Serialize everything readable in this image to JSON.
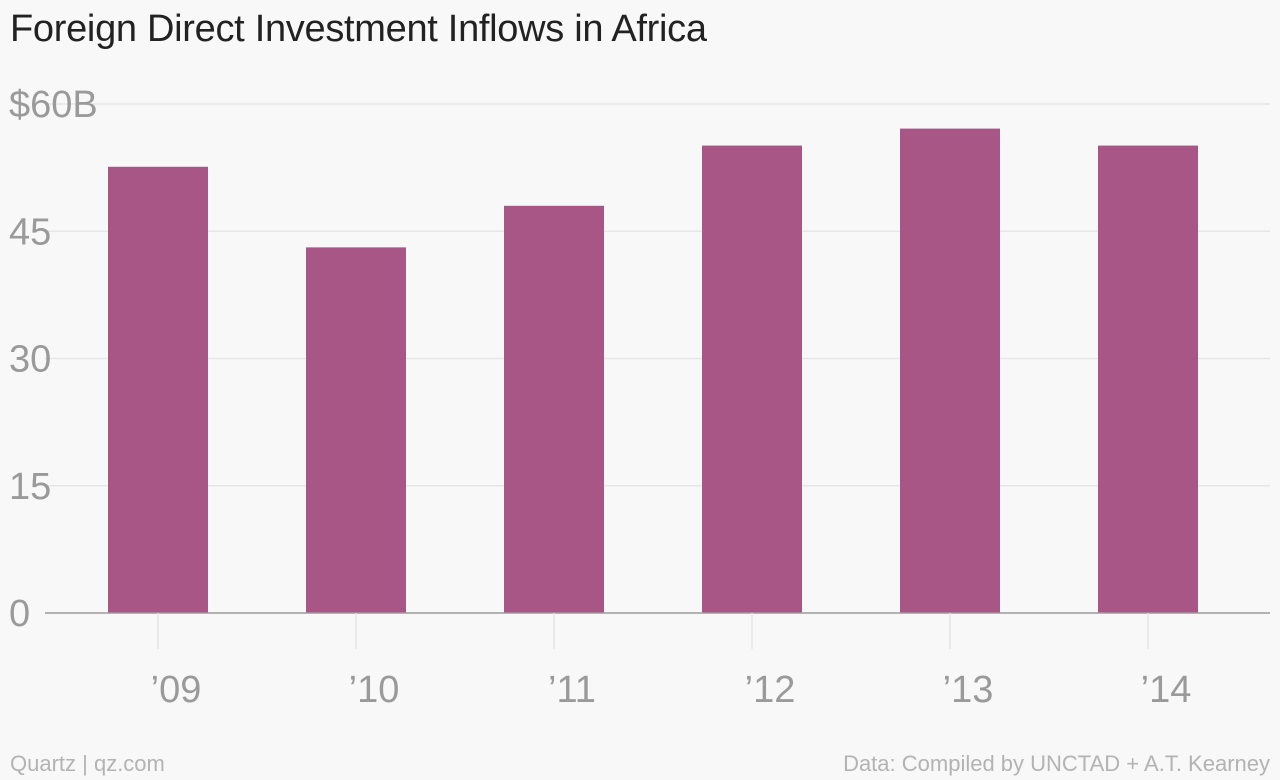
{
  "title": "Foreign Direct Investment Inflows in Africa",
  "footer": {
    "source_left": "Quartz | qz.com",
    "source_right": "Data: Compiled by UNCTAD + A.T. Kearney"
  },
  "colors": {
    "bar": "#a85686",
    "grid": "#e6e6e6",
    "axis": "#9a9a9a",
    "tick_text": "#9a9a9a",
    "title": "#222222",
    "footer": "#b3b3b3",
    "background": "#f8f8f8"
  },
  "chart_data": {
    "type": "bar",
    "title": "Foreign Direct Investment Inflows in Africa",
    "categories": [
      "’09",
      "’10",
      "’11",
      "’12",
      "’13",
      "’14"
    ],
    "values": [
      52.6,
      43.1,
      48.0,
      55.1,
      57.1,
      55.1
    ],
    "xlabel": "",
    "ylabel": "",
    "ylim": [
      0,
      60
    ],
    "yticks": [
      0,
      15,
      30,
      45,
      60
    ],
    "ytick_labels": [
      "0",
      "15",
      "30",
      "45",
      "$60B"
    ],
    "grid": true,
    "legend": "none"
  }
}
